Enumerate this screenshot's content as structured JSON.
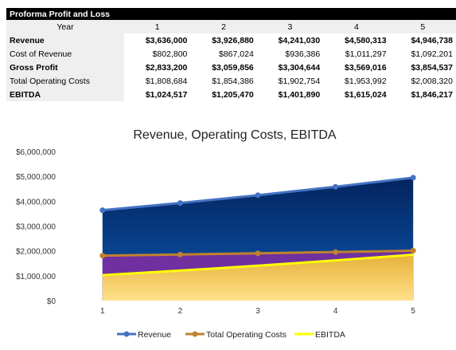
{
  "table": {
    "title": "Proforma Profit and Loss",
    "year_label": "Year",
    "years": [
      "1",
      "2",
      "3",
      "4",
      "5"
    ],
    "rows": [
      {
        "label": "Revenue",
        "bold": true,
        "values": [
          "$3,636,000",
          "$3,926,880",
          "$4,241,030",
          "$4,580,313",
          "$4,946,738"
        ]
      },
      {
        "label": "Cost of Revenue",
        "bold": false,
        "values": [
          "$802,800",
          "$867,024",
          "$936,386",
          "$1,011,297",
          "$1,092,201"
        ]
      },
      {
        "label": "Gross Profit",
        "bold": true,
        "values": [
          "$2,833,200",
          "$3,059,856",
          "$3,304,644",
          "$3,569,016",
          "$3,854,537"
        ]
      },
      {
        "label": "Total Operating Costs",
        "bold": false,
        "values": [
          "$1,808,684",
          "$1,854,386",
          "$1,902,754",
          "$1,953,992",
          "$2,008,320"
        ]
      },
      {
        "label": "EBITDA",
        "bold": true,
        "values": [
          "$1,024,517",
          "$1,205,470",
          "$1,401,890",
          "$1,615,024",
          "$1,846,217"
        ]
      }
    ]
  },
  "chart_data": {
    "type": "area",
    "title": "Revenue, Operating Costs, EBITDA",
    "categories": [
      "1",
      "2",
      "3",
      "4",
      "5"
    ],
    "ylim": [
      0,
      6000000
    ],
    "yticks": [
      0,
      1000000,
      2000000,
      3000000,
      4000000,
      5000000,
      6000000
    ],
    "ytick_labels": [
      "$0",
      "$1,000,000",
      "$2,000,000",
      "$3,000,000",
      "$4,000,000",
      "$5,000,000",
      "$6,000,000"
    ],
    "grid": false,
    "legend_position": "bottom",
    "series": [
      {
        "name": "Revenue",
        "values": [
          3636000,
          3926880,
          4241030,
          4580313,
          4946738
        ],
        "color": "#4472c4",
        "fill": "#0b3a8c"
      },
      {
        "name": "Total Operating Costs",
        "values": [
          1808684,
          1854386,
          1902754,
          1953992,
          2008320
        ],
        "color": "#c0822e",
        "fill": "#7030a0"
      },
      {
        "name": "EBITDA",
        "values": [
          1024517,
          1205470,
          1401890,
          1615024,
          1846217
        ],
        "color": "#ffff00",
        "fill": "#f2c84b"
      }
    ]
  }
}
